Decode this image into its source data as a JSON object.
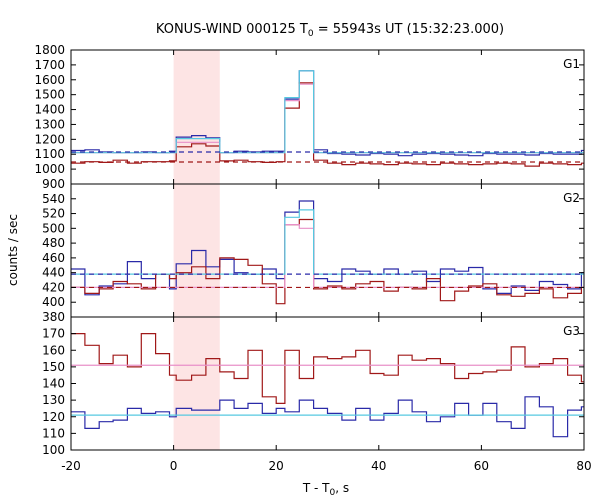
{
  "title": {
    "prefix": "KONUS-WIND 000125 T",
    "sub": "0",
    "suffix": " = 55943s UT (15:32:23.000)"
  },
  "xlabel": {
    "main": "T - T",
    "sub": "0",
    "unit": ", s"
  },
  "ylabel": "counts / sec",
  "colors": {
    "red": "#a01818",
    "blue": "#2a2aa8",
    "pink": "#e890c8",
    "cyan": "#56c8e0",
    "shade": "#fde4e4"
  },
  "chart_data": {
    "type": "line",
    "xlim": [
      -20,
      80
    ],
    "xticks": [
      -20,
      0,
      20,
      40,
      60,
      80
    ],
    "shaded_interval": [
      0,
      9
    ],
    "panels": [
      {
        "label": "G1",
        "ylim": [
          900,
          1800
        ],
        "yticks": [
          900,
          1000,
          1100,
          1200,
          1300,
          1400,
          1500,
          1600,
          1700,
          1800
        ],
        "series": [
          {
            "color": "blue",
            "style": "step",
            "edges": [
              -20,
              -17.3,
              -14.5,
              -11.8,
              -9,
              -6.3,
              -3.5,
              -0.8,
              0.5,
              3.5,
              6.3,
              9,
              11.8,
              14.5,
              17.3,
              20,
              21.7,
              24.5,
              27.3,
              30,
              32.8,
              35.5,
              38.3,
              41,
              43.8,
              46.5,
              49.3,
              52,
              54.8,
              57.5,
              60.3,
              63,
              65.8,
              68.5,
              71.3,
              74,
              76.8,
              79.5,
              80
            ],
            "values": [
              1125,
              1130,
              1115,
              1110,
              1110,
              1115,
              1110,
              1120,
              1215,
              1225,
              1210,
              1110,
              1120,
              1115,
              1120,
              1120,
              1470,
              1660,
              1130,
              1105,
              1100,
              1095,
              1105,
              1100,
              1090,
              1100,
              1105,
              1100,
              1095,
              1090,
              1105,
              1100,
              1100,
              1095,
              1105,
              1100,
              1100,
              1125
            ]
          },
          {
            "color": "red",
            "style": "step",
            "edges": [
              -20,
              -17.3,
              -14.5,
              -11.8,
              -9,
              -6.3,
              -3.5,
              -0.8,
              0.5,
              3.5,
              6.3,
              9,
              11.8,
              14.5,
              17.3,
              20,
              21.7,
              24.5,
              27.3,
              30,
              32.8,
              35.5,
              38.3,
              41,
              43.8,
              46.5,
              49.3,
              52,
              54.8,
              57.5,
              60.3,
              63,
              65.8,
              68.5,
              71.3,
              74,
              76.8,
              79.5,
              80
            ],
            "values": [
              1040,
              1050,
              1045,
              1060,
              1040,
              1050,
              1050,
              1055,
              1150,
              1170,
              1155,
              1055,
              1060,
              1050,
              1045,
              1050,
              1410,
              1580,
              1060,
              1040,
              1030,
              1040,
              1035,
              1030,
              1040,
              1035,
              1030,
              1040,
              1035,
              1030,
              1035,
              1040,
              1035,
              1020,
              1040,
              1035,
              1030,
              1040
            ]
          },
          {
            "color": "pink",
            "style": "step",
            "edges": [
              -20,
              0.5,
              9,
              21.7,
              24.5,
              27.3,
              80
            ],
            "values": [
              1110,
              1180,
              1110,
              1460,
              1570,
              1110
            ]
          },
          {
            "color": "cyan",
            "style": "step",
            "edges": [
              -20,
              0.5,
              9,
              21.7,
              24.5,
              27.3,
              80
            ],
            "values": [
              1110,
              1205,
              1110,
              1480,
              1660,
              1110
            ]
          },
          {
            "color": "blue",
            "style": "dashed-level",
            "range": [
              -20,
              80
            ],
            "value": 1115
          },
          {
            "color": "red",
            "style": "dashed-level",
            "range": [
              -20,
              80
            ],
            "value": 1048
          }
        ]
      },
      {
        "label": "G2",
        "ylim": [
          380,
          560
        ],
        "yticks": [
          380,
          400,
          420,
          440,
          460,
          480,
          500,
          520,
          540
        ],
        "series": [
          {
            "color": "blue",
            "style": "step",
            "edges": [
              -20,
              -17.3,
              -14.5,
              -11.8,
              -9,
              -6.3,
              -3.5,
              -0.8,
              0.5,
              3.5,
              6.3,
              9,
              11.8,
              14.5,
              17.3,
              20,
              21.7,
              24.5,
              27.3,
              30,
              32.8,
              35.5,
              38.3,
              41,
              43.8,
              46.5,
              49.3,
              52,
              54.8,
              57.5,
              60.3,
              63,
              65.8,
              68.5,
              71.3,
              74,
              76.8,
              79.5,
              80
            ],
            "values": [
              445,
              410,
              422,
              425,
              455,
              432,
              438,
              418,
              452,
              470,
              448,
              458,
              440,
              438,
              445,
              432,
              522,
              537,
              432,
              428,
              445,
              442,
              438,
              445,
              438,
              442,
              428,
              445,
              442,
              447,
              418,
              412,
              422,
              416,
              428,
              424,
              418,
              440
            ]
          },
          {
            "color": "red",
            "style": "step",
            "edges": [
              -20,
              -17.3,
              -14.5,
              -11.8,
              -9,
              -6.3,
              -3.5,
              -0.8,
              0.5,
              3.5,
              6.3,
              9,
              11.8,
              14.5,
              17.3,
              20,
              21.7,
              24.5,
              27.3,
              30,
              32.8,
              35.5,
              38.3,
              41,
              43.8,
              46.5,
              49.3,
              52,
              54.8,
              57.5,
              60.3,
              63,
              65.8,
              68.5,
              71.3,
              74,
              76.8,
              79.5,
              80
            ],
            "values": [
              420,
              412,
              418,
              428,
              425,
              418,
              438,
              432,
              440,
              448,
              432,
              460,
              458,
              450,
              425,
              398,
              505,
              512,
              418,
              422,
              418,
              425,
              428,
              415,
              420,
              418,
              432,
              402,
              415,
              422,
              425,
              410,
              408,
              412,
              418,
              406,
              412,
              420
            ]
          },
          {
            "color": "pink",
            "style": "step",
            "edges": [
              -20,
              0.5,
              9,
              21.7,
              24.5,
              27.3,
              80
            ],
            "values": [
              420,
              420,
              420,
              505,
              500,
              420
            ]
          },
          {
            "color": "cyan",
            "style": "step",
            "edges": [
              -20,
              0.5,
              9,
              21.7,
              24.5,
              27.3,
              80
            ],
            "values": [
              438,
              438,
              438,
              515,
              525,
              438
            ]
          },
          {
            "color": "blue",
            "style": "dashed-level",
            "range": [
              -20,
              80
            ],
            "value": 438
          },
          {
            "color": "red",
            "style": "dashed-level",
            "range": [
              -20,
              80
            ],
            "value": 420
          }
        ]
      },
      {
        "label": "G3",
        "ylim": [
          100,
          180
        ],
        "yticks": [
          100,
          110,
          120,
          130,
          140,
          150,
          160,
          170
        ],
        "series": [
          {
            "color": "red",
            "style": "step",
            "edges": [
              -20,
              -17.3,
              -14.5,
              -11.8,
              -9,
              -6.3,
              -3.5,
              -0.8,
              0.5,
              3.5,
              6.3,
              9,
              11.8,
              14.5,
              17.3,
              20,
              21.7,
              24.5,
              27.3,
              30,
              32.8,
              35.5,
              38.3,
              41,
              43.8,
              46.5,
              49.3,
              52,
              54.8,
              57.5,
              60.3,
              63,
              65.8,
              68.5,
              71.3,
              74,
              76.8,
              79.5,
              80
            ],
            "values": [
              170,
              163,
              152,
              157,
              150,
              170,
              158,
              145,
              142,
              145,
              155,
              147,
              143,
              160,
              132,
              128,
              160,
              143,
              156,
              155,
              156,
              160,
              146,
              145,
              157,
              154,
              155,
              152,
              143,
              146,
              147,
              148,
              162,
              150,
              152,
              155,
              145,
              141
            ]
          },
          {
            "color": "blue",
            "style": "step",
            "edges": [
              -20,
              -17.3,
              -14.5,
              -11.8,
              -9,
              -6.3,
              -3.5,
              -0.8,
              0.5,
              3.5,
              6.3,
              9,
              11.8,
              14.5,
              17.3,
              20,
              21.7,
              24.5,
              27.3,
              30,
              32.8,
              35.5,
              38.3,
              41,
              43.8,
              46.5,
              49.3,
              52,
              54.8,
              57.5,
              60.3,
              63,
              65.8,
              68.5,
              71.3,
              74,
              76.8,
              79.5,
              80
            ],
            "values": [
              123,
              113,
              117,
              118,
              125,
              122,
              123,
              120,
              125,
              124,
              124,
              130,
              125,
              128,
              122,
              125,
              123,
              130,
              125,
              122,
              118,
              125,
              118,
              122,
              130,
              123,
              117,
              120,
              128,
              121,
              128,
              117,
              113,
              132,
              126,
              108,
              124,
              126
            ]
          },
          {
            "color": "pink",
            "style": "level",
            "range": [
              -20,
              80
            ],
            "value": 151
          },
          {
            "color": "cyan",
            "style": "level",
            "range": [
              -20,
              80
            ],
            "value": 121
          }
        ]
      }
    ]
  }
}
